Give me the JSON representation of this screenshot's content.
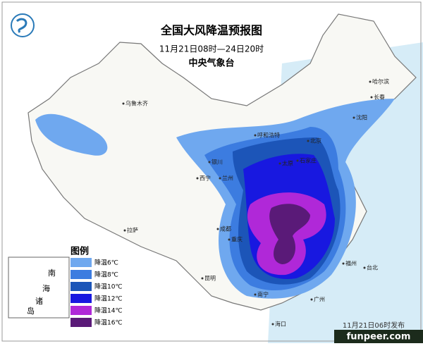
{
  "header": {
    "title": "全国大风降温预报图",
    "period": "11月21日08时—24日20时",
    "issuer": "中央气象台"
  },
  "legend": {
    "title": "图例",
    "items": [
      {
        "label": "降温6℃",
        "color": "#6fa8ef"
      },
      {
        "label": "降温8℃",
        "color": "#3c7ce0"
      },
      {
        "label": "降温10℃",
        "color": "#1c55b8"
      },
      {
        "label": "降温12℃",
        "color": "#1818e0"
      },
      {
        "label": "降温14℃",
        "color": "#b028d8"
      },
      {
        "label": "降温16℃",
        "color": "#5a1a78"
      }
    ]
  },
  "cities": [
    {
      "name": "乌鲁木齐"
    },
    {
      "name": "哈尔滨"
    },
    {
      "name": "长春"
    },
    {
      "name": "沈阳"
    },
    {
      "name": "呼和浩特"
    },
    {
      "name": "北京"
    },
    {
      "name": "银川"
    },
    {
      "name": "太原"
    },
    {
      "name": "石家庄"
    },
    {
      "name": "西宁"
    },
    {
      "name": "兰州"
    },
    {
      "name": "成都"
    },
    {
      "name": "重庆"
    },
    {
      "name": "拉萨"
    },
    {
      "name": "昆明"
    },
    {
      "name": "福州"
    },
    {
      "name": "台北"
    },
    {
      "name": "广州"
    },
    {
      "name": "海口"
    },
    {
      "name": "南宁"
    }
  ],
  "inset": {
    "labels": [
      "南",
      "海",
      "诸",
      "岛"
    ]
  },
  "footer": {
    "issued": "11月21日06时发布"
  },
  "watermark": "funpeer.com"
}
